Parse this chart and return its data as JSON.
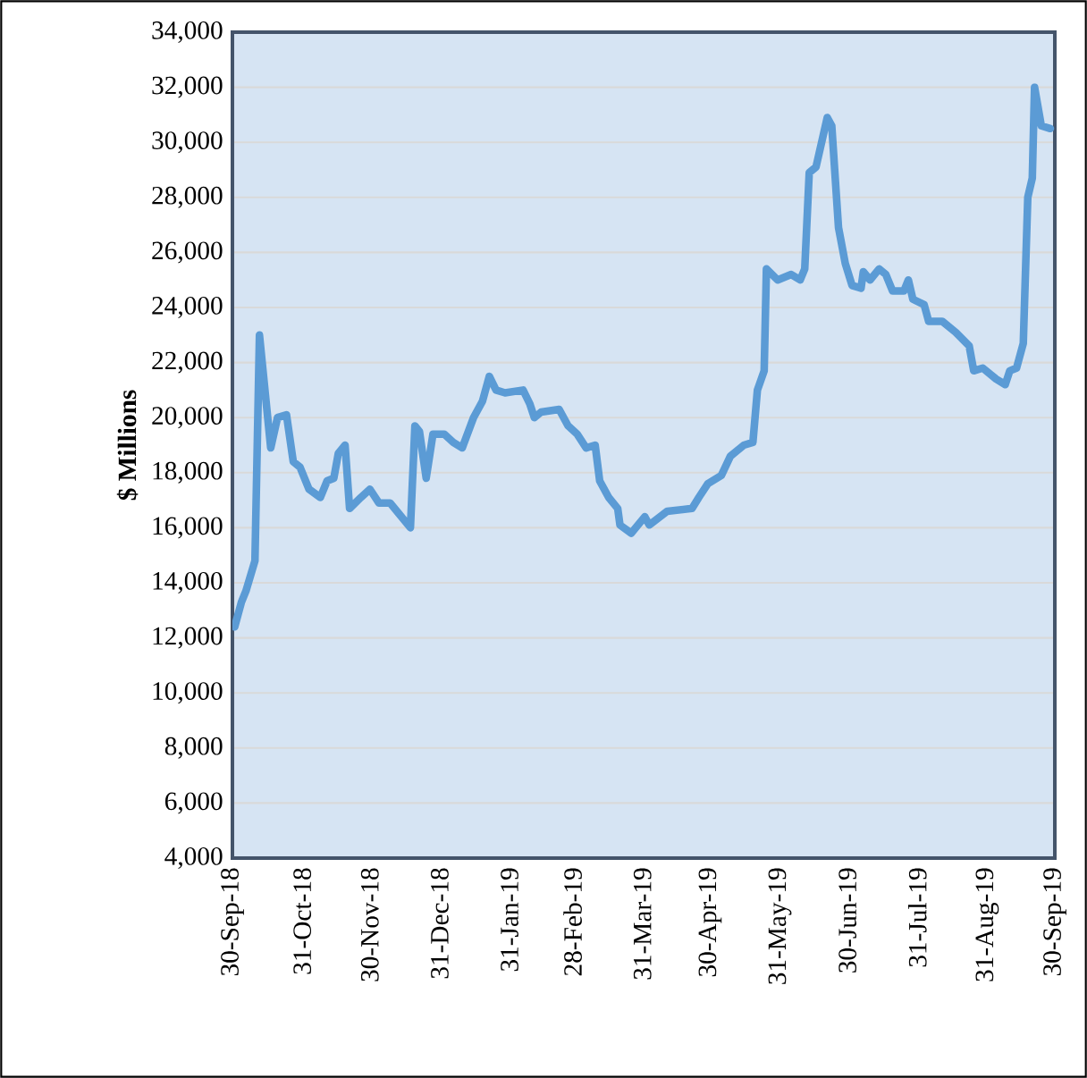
{
  "chart_data": {
    "type": "line",
    "ylabel": "$ Millions",
    "xlim": [
      "2018-09-30",
      "2019-09-30"
    ],
    "ylim": [
      4000,
      34000
    ],
    "yticks": [
      {
        "value": 4000,
        "label": "4,000"
      },
      {
        "value": 6000,
        "label": "6,000"
      },
      {
        "value": 8000,
        "label": "8,000"
      },
      {
        "value": 10000,
        "label": "10,000"
      },
      {
        "value": 12000,
        "label": "12,000"
      },
      {
        "value": 14000,
        "label": "14,000"
      },
      {
        "value": 16000,
        "label": "16,000"
      },
      {
        "value": 18000,
        "label": "18,000"
      },
      {
        "value": 20000,
        "label": "20,000"
      },
      {
        "value": 22000,
        "label": "22,000"
      },
      {
        "value": 24000,
        "label": "24,000"
      },
      {
        "value": 26000,
        "label": "26,000"
      },
      {
        "value": 28000,
        "label": "28,000"
      },
      {
        "value": 30000,
        "label": "30,000"
      },
      {
        "value": 32000,
        "label": "32,000"
      },
      {
        "value": 34000,
        "label": "34,000"
      }
    ],
    "xticks": [
      {
        "value": "2018-09-30",
        "label": "30-Sep-18"
      },
      {
        "value": "2018-10-31",
        "label": "31-Oct-18"
      },
      {
        "value": "2018-11-30",
        "label": "30-Nov-18"
      },
      {
        "value": "2018-12-31",
        "label": "31-Dec-18"
      },
      {
        "value": "2019-01-31",
        "label": "31-Jan-19"
      },
      {
        "value": "2019-02-28",
        "label": "28-Feb-19"
      },
      {
        "value": "2019-03-31",
        "label": "31-Mar-19"
      },
      {
        "value": "2019-04-30",
        "label": "30-Apr-19"
      },
      {
        "value": "2019-05-31",
        "label": "31-May-19"
      },
      {
        "value": "2019-06-30",
        "label": "30-Jun-19"
      },
      {
        "value": "2019-07-31",
        "label": "31-Jul-19"
      },
      {
        "value": "2019-08-31",
        "label": "31-Aug-19"
      },
      {
        "value": "2019-09-30",
        "label": "30-Sep-19"
      }
    ],
    "grid": "y",
    "marker": "none",
    "line_style": "solid",
    "series": [
      {
        "color": "#5b9bd5",
        "x": [
          "2018-10-01",
          "2018-10-04",
          "2018-10-06",
          "2018-10-10",
          "2018-10-12",
          "2018-10-17",
          "2018-10-20",
          "2018-10-24",
          "2018-10-27",
          "2018-10-30",
          "2018-11-03",
          "2018-11-08",
          "2018-11-11",
          "2018-11-14",
          "2018-11-16",
          "2018-11-19",
          "2018-11-21",
          "2018-11-26",
          "2018-11-30",
          "2018-12-04",
          "2018-12-09",
          "2018-12-13",
          "2018-12-18",
          "2018-12-20",
          "2018-12-22",
          "2018-12-25",
          "2018-12-28",
          "2019-01-02",
          "2019-01-06",
          "2019-01-10",
          "2019-01-15",
          "2019-01-19",
          "2019-01-22",
          "2019-01-25",
          "2019-01-29",
          "2019-02-06",
          "2019-02-09",
          "2019-02-11",
          "2019-02-14",
          "2019-02-22",
          "2019-02-26",
          "2019-03-02",
          "2019-03-06",
          "2019-03-10",
          "2019-03-12",
          "2019-03-16",
          "2019-03-20",
          "2019-03-21",
          "2019-03-26",
          "2019-04-01",
          "2019-04-03",
          "2019-04-11",
          "2019-04-22",
          "2019-04-25",
          "2019-04-29",
          "2019-05-05",
          "2019-05-09",
          "2019-05-15",
          "2019-05-19",
          "2019-05-21",
          "2019-05-24",
          "2019-05-25",
          "2019-05-30",
          "2019-06-05",
          "2019-06-09",
          "2019-06-11",
          "2019-06-13",
          "2019-06-16",
          "2019-06-21",
          "2019-06-23",
          "2019-06-26",
          "2019-06-29",
          "2019-07-02",
          "2019-07-06",
          "2019-07-07",
          "2019-07-10",
          "2019-07-14",
          "2019-07-17",
          "2019-07-20",
          "2019-07-25",
          "2019-07-27",
          "2019-07-29",
          "2019-08-03",
          "2019-08-05",
          "2019-08-11",
          "2019-08-17",
          "2019-08-23",
          "2019-08-25",
          "2019-08-29",
          "2019-09-04",
          "2019-09-08",
          "2019-09-10",
          "2019-09-13",
          "2019-09-16",
          "2019-09-18",
          "2019-09-20",
          "2019-09-21",
          "2019-09-24",
          "2019-09-28"
        ],
        "values": [
          12400,
          13300,
          13700,
          14800,
          23000,
          18900,
          20000,
          20100,
          18400,
          18200,
          17400,
          17100,
          17700,
          17800,
          18700,
          19000,
          16700,
          17100,
          17400,
          16900,
          16900,
          16500,
          16000,
          19700,
          19500,
          17800,
          19400,
          19400,
          19100,
          18900,
          20000,
          20600,
          21500,
          21000,
          20900,
          21000,
          20500,
          20000,
          20200,
          20300,
          19700,
          19400,
          18900,
          19000,
          17700,
          17100,
          16700,
          16100,
          15800,
          16400,
          16100,
          16600,
          16700,
          17100,
          17600,
          17900,
          18600,
          19000,
          19100,
          21000,
          21700,
          25400,
          25000,
          25200,
          25000,
          25400,
          28900,
          29100,
          30900,
          30600,
          26900,
          25600,
          24800,
          24700,
          25300,
          25000,
          25400,
          25200,
          24600,
          24600,
          25000,
          24300,
          24100,
          23500,
          23500,
          23100,
          22600,
          21700,
          21800,
          21400,
          21200,
          21700,
          21800,
          22700,
          28000,
          28700,
          32000,
          30600,
          30500
        ]
      }
    ]
  }
}
